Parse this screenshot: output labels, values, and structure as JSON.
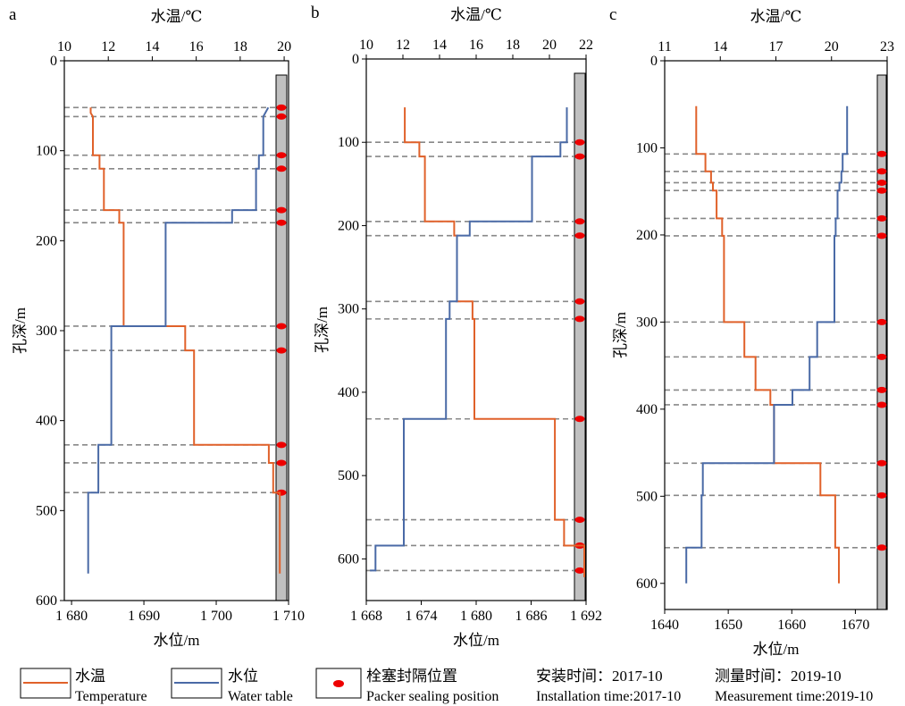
{
  "chart_data": [
    {
      "type": "line",
      "panel_label": "a",
      "top_axis_label": "水温/℃",
      "top_ticks": [
        10,
        12,
        14,
        16,
        18,
        20
      ],
      "top_range": [
        10,
        20.2
      ],
      "bottom_axis_label": "水位/m",
      "bottom_ticks": [
        1680,
        1690,
        1700,
        1710
      ],
      "bottom_tick_labels": [
        "1 680",
        "1 690",
        "1 700",
        "1 710"
      ],
      "bottom_range": [
        1679,
        1710
      ],
      "ylabel": "孔深/m",
      "y_ticks": [
        0,
        100,
        200,
        300,
        400,
        500,
        600
      ],
      "y_range": [
        0,
        600
      ],
      "packer_depths": [
        52,
        62,
        105,
        120,
        166,
        180,
        295,
        322,
        427,
        447,
        480
      ],
      "series": [
        {
          "name": "水温",
          "color": "#e0612a",
          "axis": "top",
          "points": [
            [
              11.2,
              52
            ],
            [
              11.2,
              58
            ],
            [
              11.3,
              62
            ],
            [
              11.3,
              105
            ],
            [
              11.6,
              105
            ],
            [
              11.6,
              120
            ],
            [
              11.8,
              120
            ],
            [
              11.8,
              166
            ],
            [
              12.5,
              166
            ],
            [
              12.5,
              180
            ],
            [
              12.7,
              180
            ],
            [
              12.7,
              295
            ],
            [
              15.5,
              295
            ],
            [
              15.5,
              322
            ],
            [
              15.9,
              322
            ],
            [
              15.9,
              427
            ],
            [
              19.3,
              427
            ],
            [
              19.3,
              447
            ],
            [
              19.5,
              447
            ],
            [
              19.5,
              480
            ],
            [
              19.8,
              480
            ],
            [
              19.8,
              570
            ]
          ]
        },
        {
          "name": "水位",
          "color": "#4a6aa6",
          "axis": "bottom",
          "points": [
            [
              1707.2,
              52
            ],
            [
              1706.5,
              62
            ],
            [
              1706.5,
              105
            ],
            [
              1705.9,
              105
            ],
            [
              1705.9,
              120
            ],
            [
              1705.5,
              120
            ],
            [
              1705.5,
              166
            ],
            [
              1702.2,
              166
            ],
            [
              1702.2,
              180
            ],
            [
              1693,
              180
            ],
            [
              1693,
              295
            ],
            [
              1685.5,
              295
            ],
            [
              1685.5,
              427
            ],
            [
              1683.7,
              427
            ],
            [
              1683.7,
              480
            ],
            [
              1682.3,
              480
            ],
            [
              1682.3,
              570
            ]
          ]
        }
      ]
    },
    {
      "type": "line",
      "panel_label": "b",
      "top_axis_label": "水温/℃",
      "top_ticks": [
        10,
        12,
        14,
        16,
        18,
        20,
        22
      ],
      "top_range": [
        10,
        22
      ],
      "bottom_axis_label": "水位/m",
      "bottom_ticks": [
        1668,
        1674,
        1680,
        1686,
        1692
      ],
      "bottom_tick_labels": [
        "1 668",
        "1 674",
        "1 680",
        "1 686",
        "1 692"
      ],
      "bottom_range": [
        1668,
        1692
      ],
      "ylabel": "孔深/m",
      "y_ticks": [
        0,
        100,
        200,
        300,
        400,
        500,
        600
      ],
      "y_range": [
        0,
        650
      ],
      "packer_depths": [
        100,
        117,
        195,
        212,
        291,
        312,
        432,
        553,
        584,
        614
      ],
      "series": [
        {
          "name": "水温",
          "color": "#e0612a",
          "axis": "top",
          "points": [
            [
              12.1,
              58
            ],
            [
              12.1,
              100
            ],
            [
              12.9,
              100
            ],
            [
              12.9,
              117
            ],
            [
              13.2,
              117
            ],
            [
              13.2,
              195
            ],
            [
              14.8,
              195
            ],
            [
              14.8,
              212
            ],
            [
              14.95,
              212
            ],
            [
              14.95,
              291
            ],
            [
              15.8,
              291
            ],
            [
              15.8,
              312
            ],
            [
              15.9,
              312
            ],
            [
              15.9,
              432
            ],
            [
              20.3,
              432
            ],
            [
              20.3,
              553
            ],
            [
              20.8,
              553
            ],
            [
              20.8,
              584
            ],
            [
              21.9,
              584
            ],
            [
              21.9,
              622
            ]
          ]
        },
        {
          "name": "水位",
          "color": "#4a6aa6",
          "axis": "bottom",
          "points": [
            [
              1689.9,
              58
            ],
            [
              1689.9,
              100
            ],
            [
              1689.2,
              100
            ],
            [
              1689.2,
              117
            ],
            [
              1686.1,
              117
            ],
            [
              1686.1,
              195
            ],
            [
              1679.3,
              195
            ],
            [
              1679.3,
              212
            ],
            [
              1677.9,
              212
            ],
            [
              1677.9,
              291
            ],
            [
              1677.1,
              291
            ],
            [
              1677.1,
              312
            ],
            [
              1676.7,
              312
            ],
            [
              1676.7,
              432
            ],
            [
              1672.1,
              432
            ],
            [
              1672.1,
              584
            ],
            [
              1669,
              584
            ],
            [
              1669,
              614
            ],
            [
              1668.4,
              614
            ]
          ]
        }
      ]
    },
    {
      "type": "line",
      "panel_label": "c",
      "top_axis_label": "水温/℃",
      "top_ticks": [
        11,
        14,
        17,
        20,
        23
      ],
      "top_tick_labels": [
        "11",
        "14",
        "17",
        "20",
        "23"
      ],
      "top_range": [
        11,
        23
      ],
      "bottom_axis_label": "水位/m",
      "bottom_ticks": [
        1640,
        1650,
        1660,
        1670
      ],
      "bottom_range": [
        1640,
        1675
      ],
      "ylabel": "孔深/m",
      "y_ticks": [
        0,
        100,
        200,
        300,
        400,
        500,
        600
      ],
      "y_range": [
        0,
        630
      ],
      "packer_depths": [
        107,
        127,
        140,
        149,
        181,
        201,
        300,
        340,
        378,
        395,
        462,
        499,
        559
      ],
      "series": [
        {
          "name": "水温",
          "color": "#e0612a",
          "axis": "top",
          "points": [
            [
              12.7,
              52
            ],
            [
              12.7,
              107
            ],
            [
              13.2,
              107
            ],
            [
              13.2,
              127
            ],
            [
              13.5,
              127
            ],
            [
              13.5,
              140
            ],
            [
              13.6,
              140
            ],
            [
              13.6,
              149
            ],
            [
              13.8,
              149
            ],
            [
              13.8,
              181
            ],
            [
              14.1,
              181
            ],
            [
              14.1,
              201
            ],
            [
              14.2,
              201
            ],
            [
              14.2,
              300
            ],
            [
              15.3,
              300
            ],
            [
              15.3,
              340
            ],
            [
              15.9,
              340
            ],
            [
              15.9,
              378
            ],
            [
              16.7,
              378
            ],
            [
              16.7,
              395
            ],
            [
              16.9,
              395
            ],
            [
              16.9,
              462
            ],
            [
              19.4,
              462
            ],
            [
              19.4,
              499
            ],
            [
              20.2,
              499
            ],
            [
              20.2,
              559
            ],
            [
              20.4,
              559
            ],
            [
              20.4,
              600
            ]
          ]
        },
        {
          "name": "水位",
          "color": "#4a6aa6",
          "axis": "bottom",
          "points": [
            [
              1668.7,
              52
            ],
            [
              1668.7,
              107
            ],
            [
              1668,
              107
            ],
            [
              1668,
              127
            ],
            [
              1667.8,
              127
            ],
            [
              1667.8,
              140
            ],
            [
              1667.5,
              140
            ],
            [
              1667.5,
              149
            ],
            [
              1667.2,
              149
            ],
            [
              1667.2,
              181
            ],
            [
              1666.9,
              181
            ],
            [
              1666.9,
              201
            ],
            [
              1666.7,
              201
            ],
            [
              1666.7,
              300
            ],
            [
              1664,
              300
            ],
            [
              1664,
              340
            ],
            [
              1662.8,
              340
            ],
            [
              1662.8,
              378
            ],
            [
              1660.1,
              378
            ],
            [
              1660.1,
              395
            ],
            [
              1657.2,
              395
            ],
            [
              1657.2,
              462
            ],
            [
              1646,
              462
            ],
            [
              1646,
              499
            ],
            [
              1645.8,
              499
            ],
            [
              1645.8,
              559
            ],
            [
              1643.4,
              559
            ],
            [
              1643.4,
              600
            ]
          ]
        }
      ]
    }
  ],
  "legend": {
    "temp_cn": "水温",
    "temp_en": "Temperature",
    "wl_cn": "水位",
    "wl_en": "Water table",
    "packer_cn": "栓塞封隔位置",
    "packer_en": "Packer sealing position",
    "install_cn": "安装时间：2017-10",
    "install_en": "Installation time:2017-10",
    "measure_cn": "测量时间：2019-10",
    "measure_en": "Measurement time:2019-10"
  },
  "colors": {
    "temperature": "#e0612a",
    "water_table": "#4a6aa6",
    "packer": "#ee0000",
    "casing": "#c0c0c0",
    "packer_line": "#888888"
  }
}
